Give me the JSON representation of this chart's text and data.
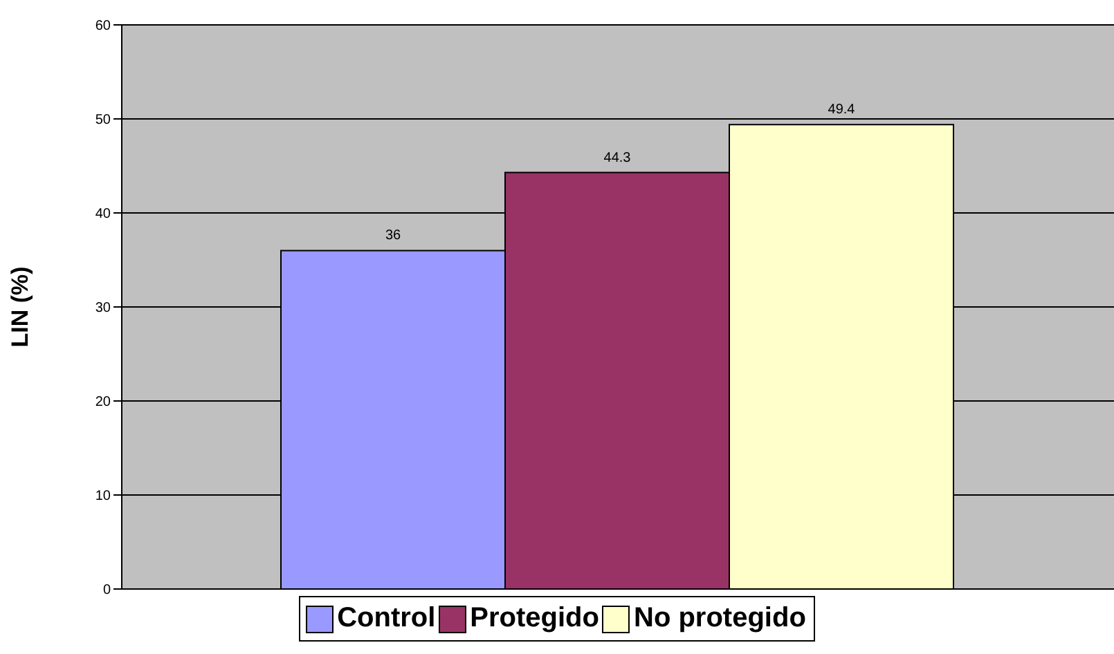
{
  "chart_data": {
    "type": "bar",
    "ylabel": "LIN (%)",
    "categories": [
      null
    ],
    "series": [
      {
        "name": "Control",
        "color": "#9999ff",
        "values": [
          36
        ]
      },
      {
        "name": "Protegido",
        "color": "#993366",
        "values": [
          44.3
        ]
      },
      {
        "name": "No protegido",
        "color": "#ffffcc",
        "values": [
          49.4
        ]
      }
    ],
    "ylim": [
      0,
      60
    ],
    "yticks": [
      0,
      10,
      20,
      30,
      40,
      50,
      60
    ],
    "grid": "y",
    "legend": "bottom",
    "data_labels": true
  }
}
